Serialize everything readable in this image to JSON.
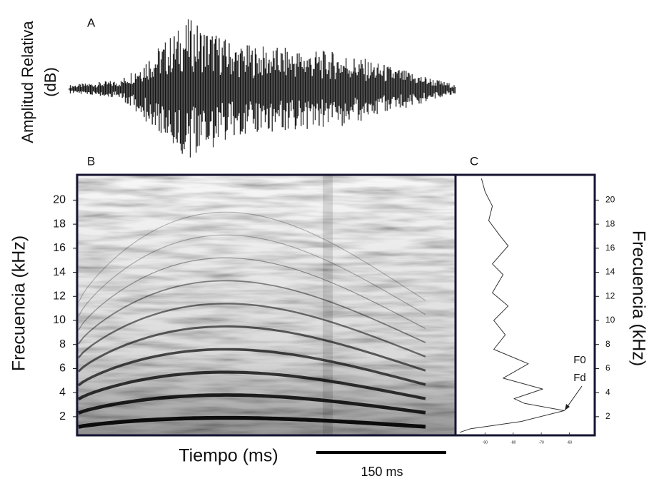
{
  "chart_data": [
    {
      "type": "waveform",
      "label": "A",
      "ylabel": [
        "Amplitud Relativa",
        "(dB)"
      ]
    },
    {
      "type": "spectrogram",
      "label": "B",
      "ylabel": "Frecuencia (kHz)",
      "xlabel": "Tiempo (ms)",
      "scale_bar": "150 ms",
      "ylim": [
        0.45,
        22.1
      ],
      "yticks": [
        2,
        4,
        6,
        8,
        10,
        12,
        14,
        16,
        18,
        20
      ]
    },
    {
      "type": "line",
      "label": "C",
      "ylabel": "Frecuencia (kHz)",
      "color": "#333333",
      "x": [
        -91.3,
        -90,
        -87.4,
        -88.7,
        -84.9,
        -81.8,
        -87.4,
        -83.6,
        -87.4,
        -81.8,
        -86.9,
        -82.8,
        -86.9,
        -74.6,
        -83.6,
        -69.5,
        -79.7,
        -75.9,
        -61.8,
        -77.2,
        -95.1,
        -99.0
      ],
      "values": [
        21.8,
        20.7,
        19.5,
        18.3,
        17.1,
        16.2,
        14.7,
        13.8,
        12.3,
        11.2,
        10.0,
        8.8,
        7.6,
        6.4,
        5.2,
        4.3,
        3.5,
        3.1,
        2.5,
        1.6,
        1.0,
        0.7
      ],
      "xlim": [
        -100,
        -51
      ],
      "xticks": [
        -90,
        -80,
        -70,
        -60
      ],
      "ylim": [
        0.45,
        22.1
      ],
      "yticks": [
        2,
        4,
        6,
        8,
        10,
        12,
        14,
        16,
        18,
        20
      ],
      "annotations": [
        "F0",
        "Fd"
      ]
    }
  ]
}
